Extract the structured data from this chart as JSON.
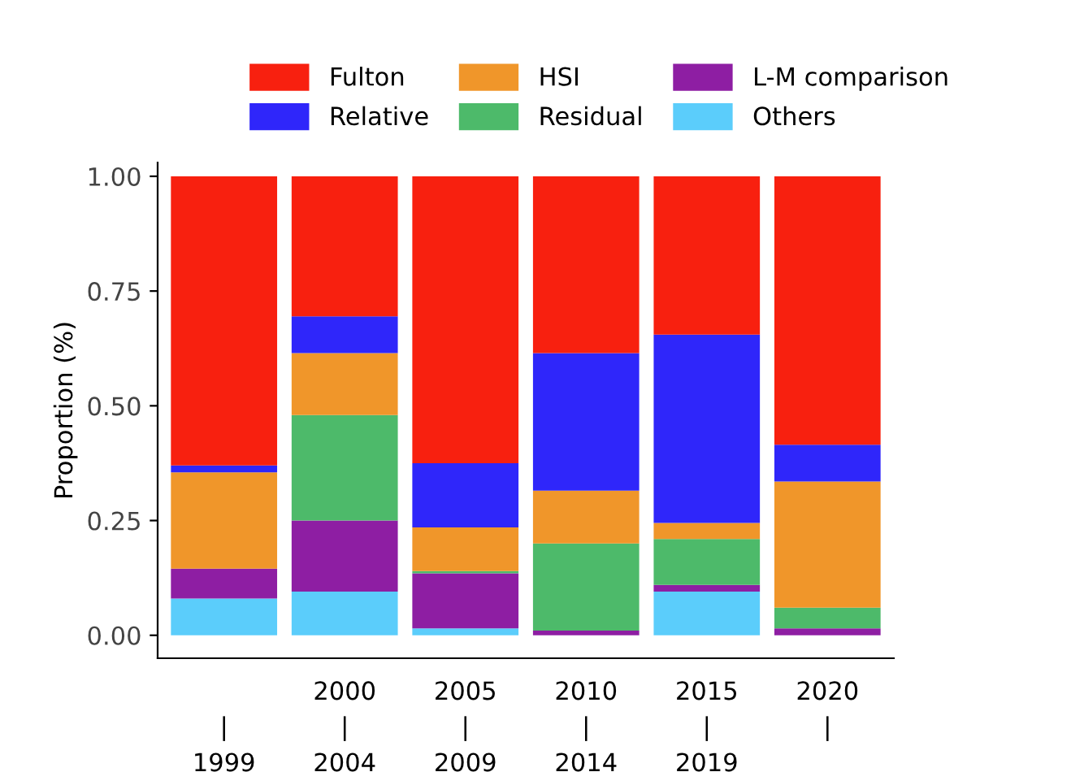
{
  "chart_data": {
    "type": "bar",
    "stacked": true,
    "ylabel": "Proportion (%)",
    "categories": [
      "\n|\n1999",
      "2000\n|\n2004",
      "2005\n|\n2009",
      "2010\n|\n2014",
      "2015\n|\n2019",
      "2020\n|\n"
    ],
    "series": [
      {
        "name": "Others",
        "color": "#5bcdfb",
        "values": [
          0.08,
          0.095,
          0.015,
          0,
          0.095,
          0
        ]
      },
      {
        "name": "L-M comparison",
        "color": "#8e1ea3",
        "values": [
          0.065,
          0.155,
          0.12,
          0.01,
          0.015,
          0.015
        ]
      },
      {
        "name": "Residual",
        "color": "#4dba6a",
        "values": [
          0,
          0.23,
          0.005,
          0.19,
          0.1,
          0.045
        ]
      },
      {
        "name": "HSI",
        "color": "#f0962a",
        "values": [
          0.21,
          0.135,
          0.095,
          0.115,
          0.035,
          0.275
        ]
      },
      {
        "name": "Relative",
        "color": "#2f26fa",
        "values": [
          0.015,
          0.08,
          0.14,
          0.3,
          0.41,
          0.08
        ]
      },
      {
        "name": "Fulton",
        "color": "#f8200f",
        "values": [
          0.63,
          0.305,
          0.625,
          0.385,
          0.345,
          0.585
        ]
      }
    ],
    "ylim": [
      -0.05,
      1.03
    ],
    "yticks": [
      {
        "value": 0,
        "label": "0.00"
      },
      {
        "value": 0.25,
        "label": "0.25"
      },
      {
        "value": 0.5,
        "label": "0.50"
      },
      {
        "value": 0.75,
        "label": "0.75"
      },
      {
        "value": 1,
        "label": "1.00"
      }
    ],
    "grid": false,
    "legend": "top"
  }
}
